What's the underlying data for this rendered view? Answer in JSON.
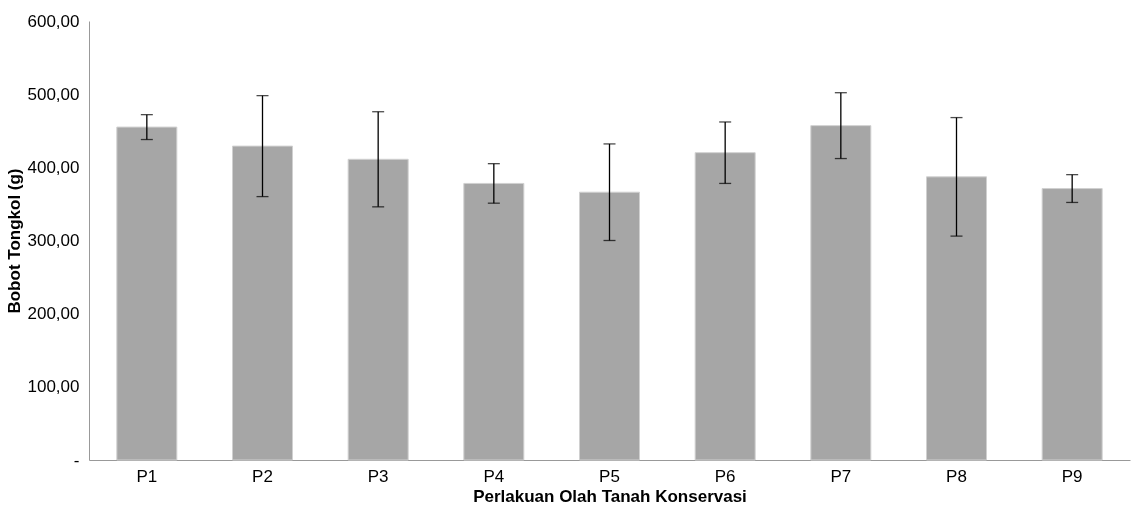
{
  "chart_data": {
    "type": "bar",
    "xlabel": "Perlakuan Olah Tanah Konservasi",
    "ylabel": "Bobot Tongkol (g)",
    "categories": [
      "P1",
      "P2",
      "P3",
      "P4",
      "P5",
      "P6",
      "P7",
      "P8",
      "P9"
    ],
    "values": [
      455,
      429,
      411,
      378,
      366,
      420,
      457,
      387,
      371
    ],
    "errors": [
      17,
      69,
      65,
      27,
      66,
      42,
      45,
      81,
      19
    ],
    "color": "#a6a6a6",
    "ylim": [
      0,
      600
    ],
    "yticks": [
      {
        "value": 0,
        "label": "-"
      },
      {
        "value": 100,
        "label": "100,00"
      },
      {
        "value": 200,
        "label": "200,00"
      },
      {
        "value": 300,
        "label": "300,00"
      },
      {
        "value": 400,
        "label": "400,00"
      },
      {
        "value": 500,
        "label": "500,00"
      },
      {
        "value": 600,
        "label": "600,00"
      }
    ],
    "grid": false
  }
}
